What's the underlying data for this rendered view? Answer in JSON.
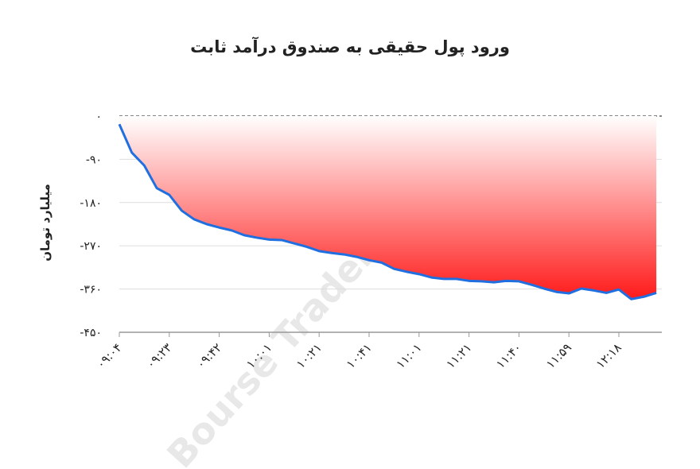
{
  "chart_data": {
    "type": "area",
    "title": "ورود پول حقیقی به صندوق درآمد ثابت",
    "y_label": "میلیارد تومان",
    "watermark": "Bourse Trader.ir",
    "categories": [
      "۰۹:۰۴",
      null,
      null,
      null,
      "۰۹:۲۳",
      null,
      null,
      null,
      "۰۹:۴۲",
      null,
      null,
      null,
      "۱۰:۰۱",
      null,
      null,
      null,
      "۱۰:۲۱",
      null,
      null,
      null,
      "۱۰:۴۱",
      null,
      null,
      null,
      "۱۱:۰۱",
      null,
      null,
      null,
      "۱۱:۲۱",
      null,
      null,
      null,
      "۱۱:۴۰",
      null,
      null,
      null,
      "۱۱:۵۹",
      null,
      null,
      null,
      "۱۲:۱۸",
      null,
      null,
      null
    ],
    "values": [
      -17,
      -76,
      -103,
      -150,
      -164,
      -197,
      -215,
      -225,
      -232,
      -238,
      -248,
      -253,
      -257,
      -258,
      -265,
      -272,
      -281,
      -285,
      -288,
      -293,
      -300,
      -305,
      -318,
      -324,
      -329,
      -336,
      -339,
      -339,
      -343,
      -344,
      -346,
      -343,
      -344,
      -351,
      -359,
      -366,
      -369,
      -359,
      -363,
      -368,
      -361,
      -381,
      -376,
      -368
    ],
    "color": "#1f6fe0",
    "fill_top_color": "#ffffff",
    "fill_bottom_color": "#ff1a1a",
    "ylim": [
      -450,
      0
    ],
    "yticks": [
      {
        "value": 0,
        "label": "۰"
      },
      {
        "value": -90,
        "label": "-۹۰"
      },
      {
        "value": -180,
        "label": "-۱۸۰"
      },
      {
        "value": -270,
        "label": "-۲۷۰"
      },
      {
        "value": -360,
        "label": "-۳۶۰"
      },
      {
        "value": -450,
        "label": "-۴۵۰"
      }
    ],
    "grid": true
  }
}
